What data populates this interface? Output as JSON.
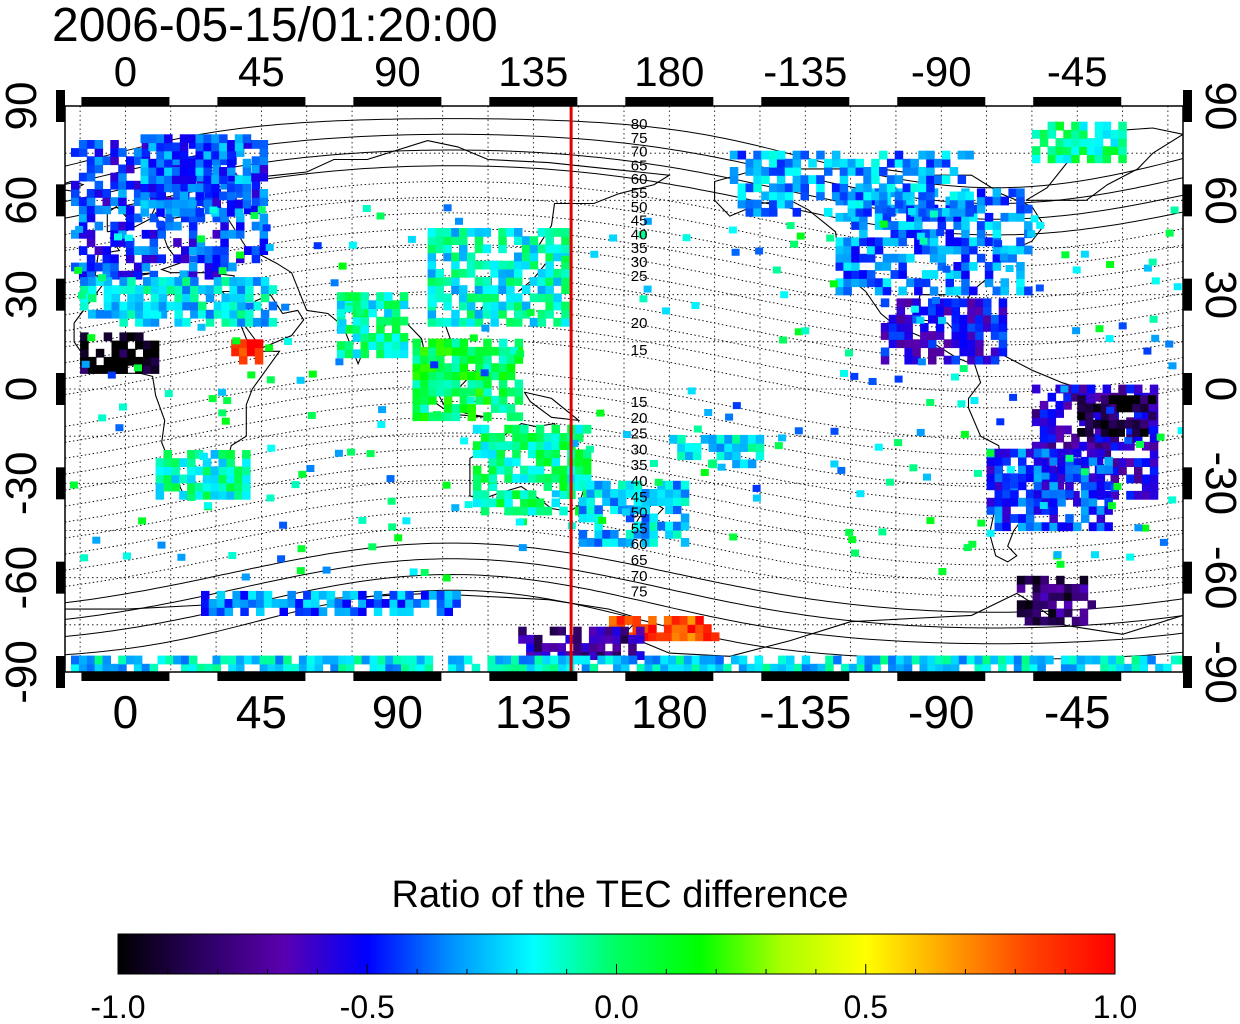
{
  "title": "2006-05-15/01:20:00",
  "map": {
    "projection": "equirectangular",
    "lon_range": [
      -20,
      350
    ],
    "lat_range": [
      -90,
      90
    ],
    "top_lon_ticks": [
      "0",
      "45",
      "90",
      "135",
      "180",
      "-135",
      "-90",
      "-45"
    ],
    "bottom_lon_ticks": [
      "0",
      "45",
      "90",
      "135",
      "180",
      "-135",
      "-90",
      "-45"
    ],
    "lon_tick_values": [
      0,
      45,
      90,
      135,
      180,
      225,
      270,
      315
    ],
    "left_lat_ticks": [
      "90",
      "60",
      "30",
      "0",
      "-30",
      "-60",
      "-90"
    ],
    "right_lat_ticks": [
      "90",
      "60",
      "30",
      "0",
      "-30",
      "-60",
      "-90"
    ],
    "lat_tick_values": [
      90,
      60,
      30,
      0,
      -30,
      -60,
      -90
    ],
    "grid": "dotted",
    "marker_line": {
      "lon": 147.5,
      "color": "#e00000"
    },
    "contour_labels_north": [
      "80",
      "75",
      "70",
      "65",
      "60",
      "55",
      "50",
      "45",
      "40",
      "35",
      "30",
      "25",
      "20",
      "15"
    ],
    "contour_labels_south": [
      "15",
      "20",
      "25",
      "30",
      "35",
      "40",
      "45",
      "50",
      "55",
      "60",
      "65",
      "70",
      "75"
    ],
    "contour_label_lon": 170,
    "data_regions": [
      {
        "name": "Europe",
        "lon": [
          -18,
          45
        ],
        "lat": [
          35,
          78
        ],
        "value": -0.45
      },
      {
        "name": "Scandinavia",
        "lon": [
          5,
          40
        ],
        "lat": [
          55,
          80
        ],
        "value": -0.38
      },
      {
        "name": "N-America",
        "lon": [
          235,
          300
        ],
        "lat": [
          30,
          62
        ],
        "value": -0.35
      },
      {
        "name": "Alaska-Canada",
        "lon": [
          200,
          280
        ],
        "lat": [
          55,
          75
        ],
        "value": -0.3
      },
      {
        "name": "Central-America",
        "lon": [
          250,
          290
        ],
        "lat": [
          8,
          28
        ],
        "value": -0.55
      },
      {
        "name": "E-Asia",
        "lon": [
          100,
          145
        ],
        "lat": [
          20,
          50
        ],
        "value": -0.15
      },
      {
        "name": "S-America-E",
        "lon": [
          300,
          340
        ],
        "lat": [
          -35,
          0
        ],
        "value": -0.62
      },
      {
        "name": "S-America-S",
        "lon": [
          285,
          325
        ],
        "lat": [
          -45,
          -20
        ],
        "value": -0.45
      },
      {
        "name": "Africa-S",
        "lon": [
          10,
          40
        ],
        "lat": [
          -35,
          -20
        ],
        "value": -0.1
      },
      {
        "name": "Australia",
        "lon": [
          115,
          152
        ],
        "lat": [
          -40,
          -12
        ],
        "value": -0.05
      },
      {
        "name": "NZ-region",
        "lon": [
          150,
          185
        ],
        "lat": [
          -50,
          -30
        ],
        "value": -0.25
      },
      {
        "name": "W-Africa",
        "lon": [
          -15,
          10
        ],
        "lat": [
          5,
          18
        ],
        "value": -0.98
      },
      {
        "name": "E-Africa",
        "lon": [
          35,
          45
        ],
        "lat": [
          8,
          15
        ],
        "value": 0.95
      },
      {
        "name": "Antarctica-Ross",
        "lon": [
          160,
          195
        ],
        "lat": [
          -80,
          -74
        ],
        "value": 0.85
      },
      {
        "name": "Antarctica-E",
        "lon": [
          130,
          170
        ],
        "lat": [
          -86,
          -78
        ],
        "value": -0.7
      },
      {
        "name": "S-Ocean-strip",
        "lon": [
          -18,
          350
        ],
        "lat": [
          -90,
          -87
        ],
        "value": -0.2
      },
      {
        "name": "Antarctic-coast",
        "lon": [
          25,
          110
        ],
        "lat": [
          -72,
          -66
        ],
        "value": -0.35
      },
      {
        "name": "Brazil-dark",
        "lon": [
          315,
          340
        ],
        "lat": [
          -15,
          -3
        ],
        "value": -0.95
      },
      {
        "name": "Patagonia",
        "lon": [
          295,
          320
        ],
        "lat": [
          -75,
          -62
        ],
        "value": -0.8
      },
      {
        "name": "N-Africa-Mid",
        "lon": [
          -15,
          50
        ],
        "lat": [
          20,
          35
        ],
        "value": -0.2
      },
      {
        "name": "Greenland",
        "lon": [
          300,
          330
        ],
        "lat": [
          72,
          84
        ],
        "value": -0.05
      },
      {
        "name": "Pacific-scatter",
        "lon": [
          180,
          210
        ],
        "lat": [
          -25,
          -15
        ],
        "value": -0.2
      },
      {
        "name": "India",
        "lon": [
          70,
          92
        ],
        "lat": [
          10,
          30
        ],
        "value": -0.1
      },
      {
        "name": "SE-Asia",
        "lon": [
          95,
          130
        ],
        "lat": [
          -10,
          15
        ],
        "value": 0.05
      }
    ]
  },
  "colorbar": {
    "title": "Ratio of the TEC difference",
    "range": [
      -1.0,
      1.0
    ],
    "tick_labels": [
      "-1.0",
      "-0.5",
      "0.0",
      "0.5",
      "1.0"
    ],
    "tick_values": [
      -1.0,
      -0.5,
      0.0,
      0.5,
      1.0
    ],
    "stops": [
      "#000000",
      "#2a0060",
      "#5a00b0",
      "#0000ff",
      "#0090ff",
      "#00ffff",
      "#00ff60",
      "#00ff00",
      "#aaff00",
      "#ffff00",
      "#ffa000",
      "#ff4000",
      "#ff0000"
    ]
  }
}
